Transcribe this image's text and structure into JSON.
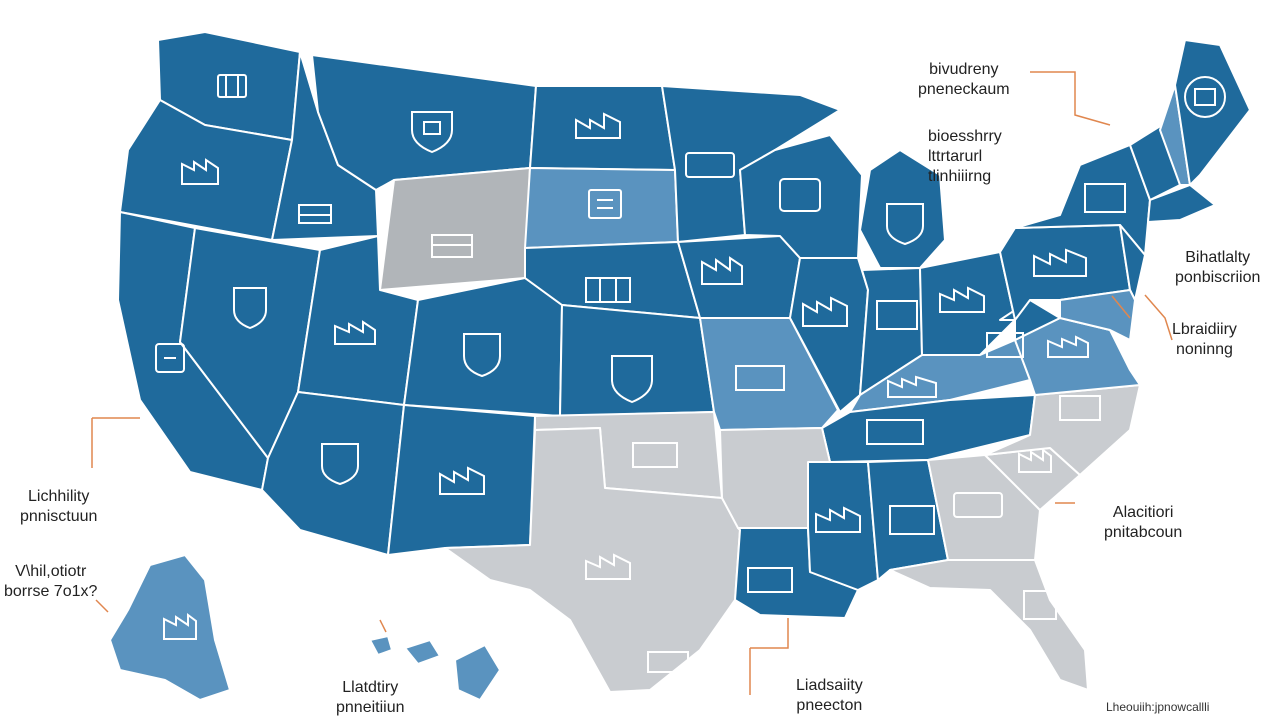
{
  "title_fragment": "",
  "callouts": [
    {
      "id": "ne1",
      "lines": [
        "bivudreny",
        "pneneckaum"
      ]
    },
    {
      "id": "ne2",
      "lines": [
        "bioesshrry",
        "lttrtarurl",
        "tlinhiiirng"
      ]
    },
    {
      "id": "e1",
      "lines": [
        "Bihatlalty",
        "ponbiscriion"
      ]
    },
    {
      "id": "e2",
      "lines": [
        "Lbraidiiry",
        "noninng"
      ]
    },
    {
      "id": "se",
      "lines": [
        "Alacitiori",
        "pnitabcoun"
      ]
    },
    {
      "id": "w1",
      "lines": [
        "Lichhility",
        "pnnisctuun"
      ]
    },
    {
      "id": "w2",
      "lines": [
        "V\\hil,otiotr",
        "borrse 7o1x?"
      ]
    },
    {
      "id": "s1",
      "lines": [
        "Llatdtiry",
        "pnneitiiun"
      ]
    },
    {
      "id": "s2",
      "lines": [
        "Liadsaiity",
        "pneecton"
      ]
    }
  ],
  "footer": "Lheouiih:jpnowcallli",
  "colors": {
    "dark_blue": "#1f6a9c",
    "mid_blue": "#2d76a8",
    "light_blue": "#5a93bf",
    "grey": "#b1b5b9",
    "light_grey": "#c9ccd0",
    "callout_line": "#e0874f"
  },
  "icons": [
    "building-icon",
    "shield-icon",
    "factory-icon",
    "document-icon"
  ]
}
